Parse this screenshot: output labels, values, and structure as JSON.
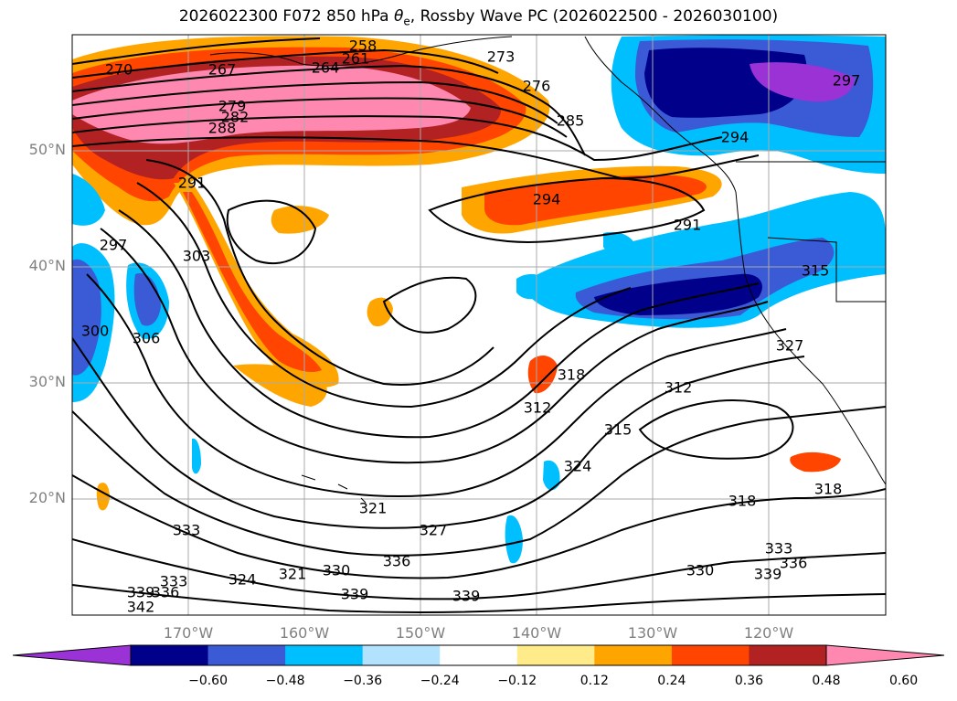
{
  "title": {
    "prefix": "2026022300 F072 850 hPa ",
    "theta": "θ",
    "theta_sub": "e",
    "suffix": ", Rossby Wave PC (2026022500 - 2026030100)"
  },
  "map": {
    "type": "contour_map",
    "projection": "plate-carree",
    "lon_range": [
      -180,
      -110
    ],
    "lat_range": [
      10,
      60
    ],
    "lat_ticks": [
      "50°N",
      "40°N",
      "30°N",
      "20°N"
    ],
    "lon_ticks": [
      "170°W",
      "160°W",
      "150°W",
      "140°W",
      "130°W",
      "120°W"
    ],
    "grid": true,
    "contour_labels": [
      "270",
      "267",
      "264",
      "261",
      "258",
      "273",
      "276",
      "279",
      "282",
      "285",
      "288",
      "291",
      "294",
      "297",
      "300",
      "303",
      "306",
      "312",
      "315",
      "318",
      "321",
      "324",
      "327",
      "330",
      "333",
      "336",
      "339",
      "342"
    ],
    "land_color": "#ffffff",
    "coastline_color": "#000000"
  },
  "colorbar": {
    "levels": [
      "−0.60",
      "−0.48",
      "−0.36",
      "−0.24",
      "−0.12",
      "0.12",
      "0.24",
      "0.36",
      "0.48",
      "0.60"
    ],
    "colors": [
      "#9a32d6",
      "#00008b",
      "#3b5bd6",
      "#00bfff",
      "#b3e2ff",
      "#ffffff",
      "#ffeb8a",
      "#ffa500",
      "#ff4500",
      "#b22222",
      "#ff88b0"
    ],
    "extend": "both"
  }
}
